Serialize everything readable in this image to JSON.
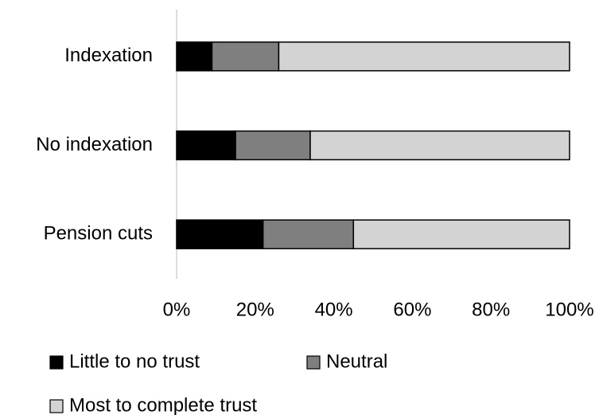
{
  "chart_data": {
    "type": "stacked-bar-horizontal",
    "categories": [
      "Indexation",
      "No indexation",
      "Pension cuts"
    ],
    "series": [
      {
        "name": "Little to no trust",
        "color": "#000000",
        "values": [
          9,
          15,
          22
        ]
      },
      {
        "name": "Neutral",
        "color": "#7f7f7f",
        "values": [
          17,
          19,
          23
        ]
      },
      {
        "name": "Most to complete trust",
        "color": "#d3d3d3",
        "values": [
          74,
          66,
          55
        ]
      }
    ],
    "xlim": [
      0,
      100
    ],
    "xticks": [
      {
        "value": 0,
        "label": "0%"
      },
      {
        "value": 20,
        "label": "20%"
      },
      {
        "value": 40,
        "label": "40%"
      },
      {
        "value": 60,
        "label": "60%"
      },
      {
        "value": 80,
        "label": "80%"
      },
      {
        "value": 100,
        "label": "100%"
      }
    ],
    "legend": "bottom"
  }
}
